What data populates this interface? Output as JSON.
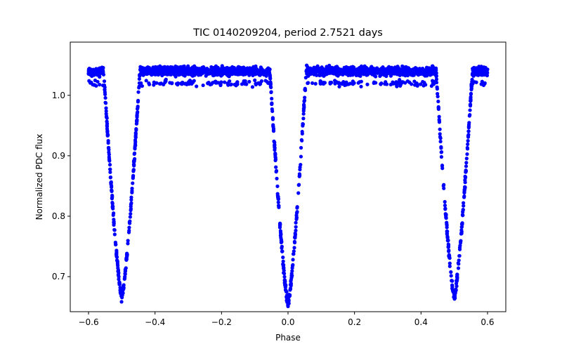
{
  "chart_data": {
    "type": "scatter",
    "title": "TIC 0140209204, period 2.7521 days",
    "xlabel": "Phase",
    "ylabel": "Normalized PDC flux",
    "xlim": [
      -0.655,
      0.655
    ],
    "ylim": [
      0.642,
      1.088
    ],
    "x_ticks": [
      {
        "value": -0.6,
        "label": "−0.6"
      },
      {
        "value": -0.4,
        "label": "−0.4"
      },
      {
        "value": -0.2,
        "label": "−0.2"
      },
      {
        "value": 0.0,
        "label": "0.0"
      },
      {
        "value": 0.2,
        "label": "0.2"
      },
      {
        "value": 0.4,
        "label": "0.4"
      },
      {
        "value": 0.6,
        "label": "0.6"
      }
    ],
    "y_ticks": [
      {
        "value": 0.7,
        "label": "0.7"
      },
      {
        "value": 0.8,
        "label": "0.8"
      },
      {
        "value": 0.9,
        "label": "0.9"
      },
      {
        "value": 1.0,
        "label": "1.0"
      }
    ],
    "series": [
      {
        "name": "PDC flux",
        "color": "#0000ff",
        "marker": "circle",
        "phase_range": [
          -0.6,
          0.6
        ],
        "baseline_flux": 1.04,
        "eclipses": [
          {
            "center_phase": -0.5,
            "min_flux": 0.665,
            "half_width_phase": 0.055
          },
          {
            "center_phase": 0.0,
            "min_flux": 0.655,
            "half_width_phase": 0.055
          },
          {
            "center_phase": 0.5,
            "min_flux": 0.665,
            "half_width_phase": 0.055
          }
        ],
        "lower_branch_flux": 1.02
      }
    ]
  }
}
